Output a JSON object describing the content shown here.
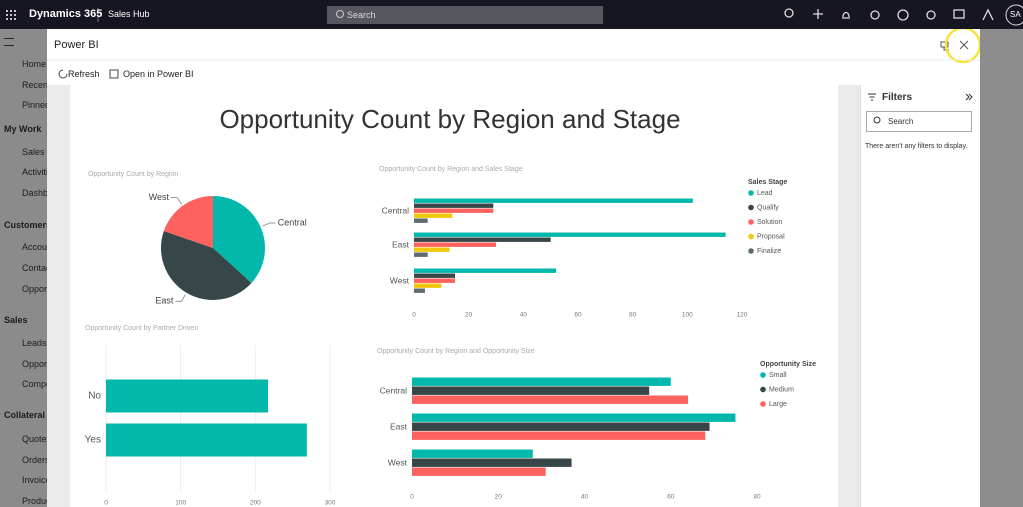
{
  "app_bar": {
    "product": "Dynamics 365",
    "app": "Sales Hub",
    "search": "Search",
    "avatar": "SA"
  },
  "sidebar": {
    "top": [
      "Home",
      "Recent",
      "Pinned"
    ],
    "groups": [
      {
        "title": "My Work",
        "items": [
          "Sales accelerator",
          "Activities",
          "Dashboards"
        ]
      },
      {
        "title": "Customers",
        "items": [
          "Accounts",
          "Contacts",
          "Opportunities"
        ]
      },
      {
        "title": "Sales",
        "items": [
          "Leads",
          "Opportunities",
          "Competitors"
        ]
      },
      {
        "title": "Collateral",
        "items": [
          "Quotes",
          "Orders",
          "Invoices",
          "Products"
        ]
      }
    ]
  },
  "dialog": {
    "title": "Power BI",
    "toolbar": [
      "Refresh",
      "Open in Power BI"
    ],
    "report_title": "Opportunity Count by Region and Stage"
  },
  "filters": {
    "title": "Filters",
    "search": "Search",
    "empty": "There aren't any filters to display."
  },
  "chart_data": [
    {
      "type": "pie",
      "title": "Opportunity Count by Region",
      "categories": [
        "Central",
        "East",
        "West"
      ],
      "values": [
        179,
        212,
        96
      ],
      "colors": [
        "#01B8AA",
        "#374649",
        "#FD625E"
      ]
    },
    {
      "type": "bar",
      "orientation": "horizontal",
      "title": "Opportunity Count by Region and Sales Stage",
      "categories": [
        "Central",
        "East",
        "West"
      ],
      "legend_title": "Sales Stage",
      "series": [
        {
          "name": "Lead",
          "color": "#01B8AA",
          "values": [
            102,
            114,
            52
          ]
        },
        {
          "name": "Qualify",
          "color": "#374649",
          "values": [
            29,
            50,
            15
          ]
        },
        {
          "name": "Solution",
          "color": "#FD625E",
          "values": [
            29,
            30,
            15
          ]
        },
        {
          "name": "Proposal",
          "color": "#F2C80F",
          "values": [
            14,
            13,
            10
          ]
        },
        {
          "name": "Finalize",
          "color": "#5F6B6D",
          "values": [
            5,
            5,
            4
          ]
        }
      ],
      "xlim": [
        0,
        120
      ],
      "xticks": [
        0,
        20,
        40,
        60,
        80,
        100,
        120
      ],
      "grid": false
    },
    {
      "type": "bar",
      "orientation": "horizontal",
      "title": "Opportunity Count by Partner Driven",
      "categories": [
        "No",
        "Yes"
      ],
      "values": [
        217,
        269
      ],
      "color": "#01B8AA",
      "xlim": [
        0,
        300
      ],
      "xticks": [
        0,
        100,
        200,
        300
      ],
      "grid": true
    },
    {
      "type": "bar",
      "orientation": "horizontal",
      "title": "Opportunity Count by Region and Opportunity Size",
      "categories": [
        "Central",
        "East",
        "West"
      ],
      "legend_title": "Opportunity Size",
      "series": [
        {
          "name": "Small",
          "color": "#01B8AA",
          "values": [
            60,
            75,
            28
          ]
        },
        {
          "name": "Medium",
          "color": "#374649",
          "values": [
            55,
            69,
            37
          ]
        },
        {
          "name": "Large",
          "color": "#FD625E",
          "values": [
            64,
            68,
            31
          ]
        }
      ],
      "xlim": [
        0,
        80
      ],
      "xticks": [
        0,
        20,
        40,
        60,
        80
      ],
      "grid": false
    }
  ]
}
